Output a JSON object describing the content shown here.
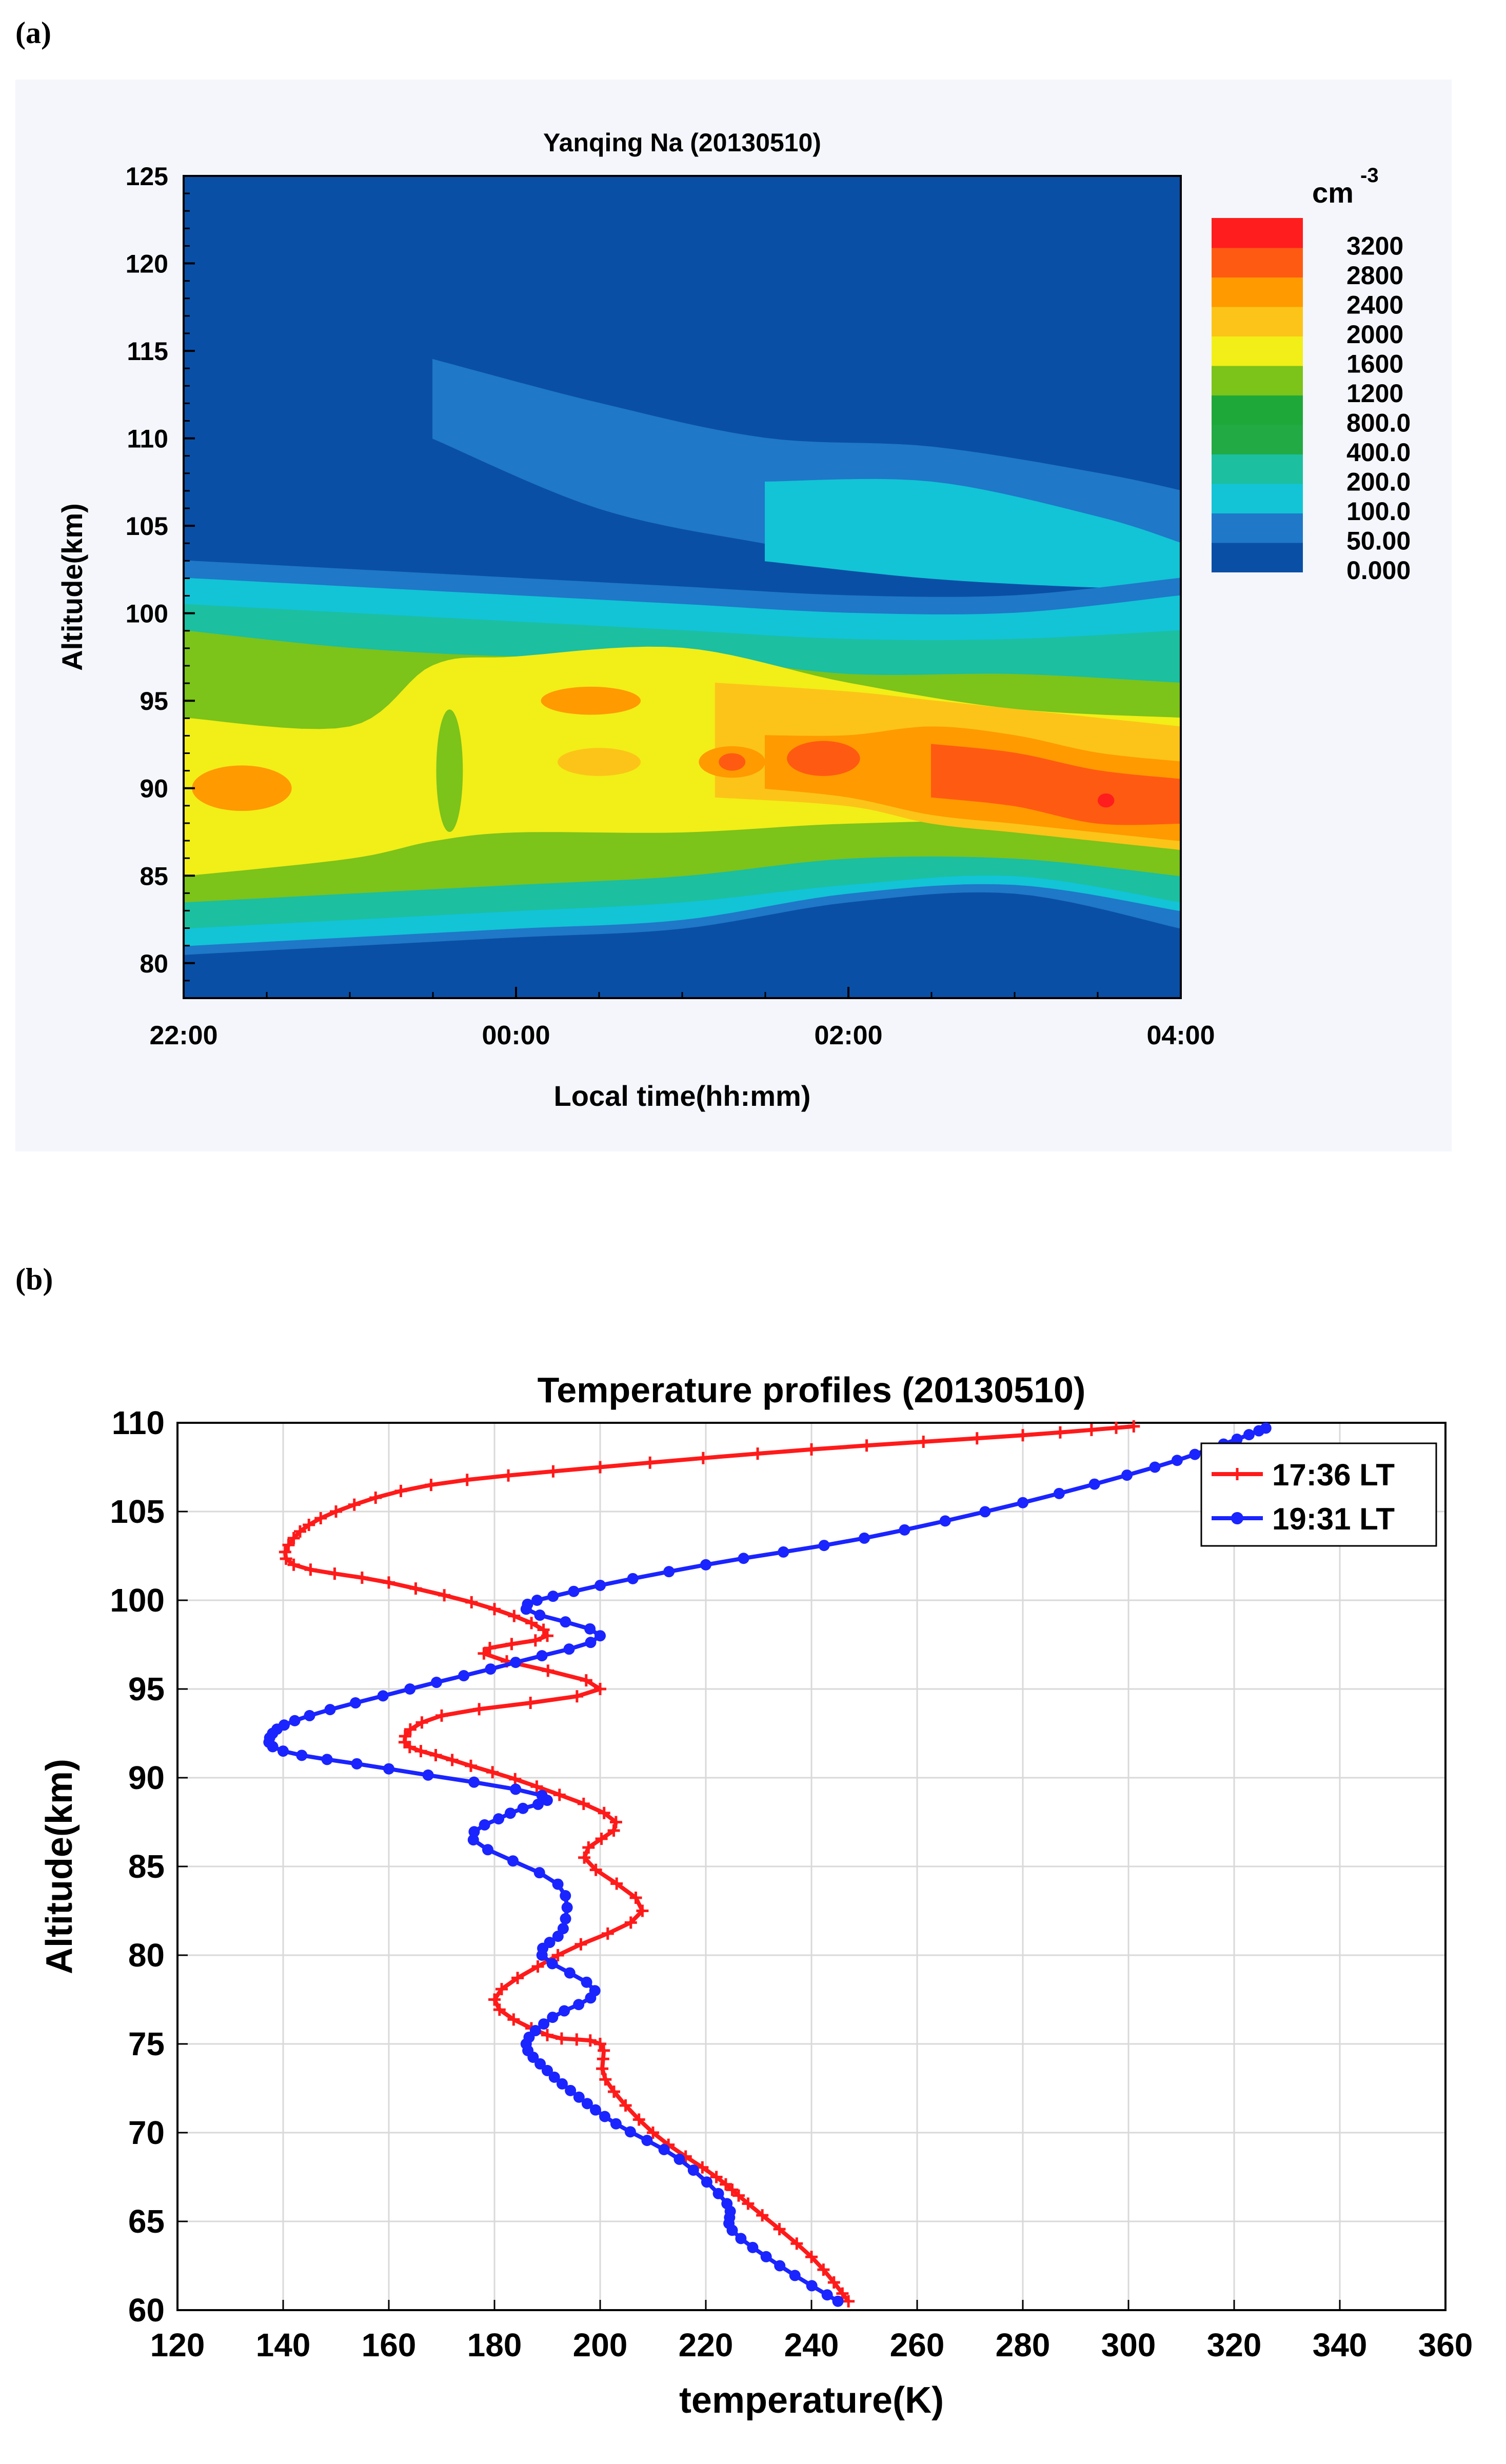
{
  "panels": {
    "a_label": "(a)",
    "b_label": "(b)"
  },
  "chart_data": [
    {
      "type": "heatmap",
      "title": "Yanqing Na (20130510)",
      "xlabel": "Local time(hh:mm)",
      "ylabel": "Altitude(km)",
      "x_tick_labels": [
        "22:00",
        "00:00",
        "02:00",
        "04:00"
      ],
      "x_range_hours": [
        0,
        6
      ],
      "ylim": [
        78,
        125
      ],
      "y_ticks": [
        80,
        85,
        90,
        95,
        100,
        105,
        110,
        115,
        120,
        125
      ],
      "colorbar": {
        "unit": "cm",
        "unit_exponent": "-3",
        "levels": [
          "0.000",
          "50.00",
          "100.0",
          "200.0",
          "400.0",
          "800.0",
          "1200",
          "1600",
          "2000",
          "2400",
          "2800",
          "3200"
        ],
        "colors": [
          "#0a4fa6",
          "#1f78c8",
          "#12c4d6",
          "#1cbfa0",
          "#22aa44",
          "#1fa83a",
          "#7cc31a",
          "#f2ee18",
          "#fcc418",
          "#ff9a00",
          "#ff5a12",
          "#ff1d1d"
        ]
      },
      "layers": [
        {
          "name": "base",
          "color": "#0a4fa6",
          "bottom": [
            [
              0,
              78
            ],
            [
              6,
              78
            ]
          ],
          "top": [
            [
              0,
              125
            ],
            [
              6,
              125
            ]
          ]
        },
        {
          "name": "upper_patch",
          "color": "#1f78c8",
          "bottom": [
            [
              1.5,
              110
            ],
            [
              2.5,
              106
            ],
            [
              3.5,
              104
            ],
            [
              4.5,
              102.5
            ],
            [
              5.5,
              102
            ],
            [
              6,
              101.5
            ]
          ],
          "top": [
            [
              1.5,
              114.5
            ],
            [
              2.5,
              112
            ],
            [
              3.5,
              110
            ],
            [
              4.5,
              109.5
            ],
            [
              5.5,
              108
            ],
            [
              6,
              107
            ]
          ]
        },
        {
          "name": "cyan_patch",
          "color": "#12c4d6",
          "bottom": [
            [
              3.5,
              103
            ],
            [
              4.5,
              102
            ],
            [
              5.5,
              101.5
            ],
            [
              6,
              101.5
            ]
          ],
          "top": [
            [
              3.5,
              107.5
            ],
            [
              4.5,
              107.5
            ],
            [
              5.5,
              105.5
            ],
            [
              6,
              104
            ]
          ]
        },
        {
          "name": "layer_50",
          "color": "#1f78c8",
          "bottom": [
            [
              0,
              80.5
            ],
            [
              1,
              81
            ],
            [
              2,
              81.5
            ],
            [
              3,
              82
            ],
            [
              4,
              83.5
            ],
            [
              5,
              84
            ],
            [
              6,
              82
            ]
          ],
          "top": [
            [
              0,
              103
            ],
            [
              1,
              102.5
            ],
            [
              2,
              102
            ],
            [
              3,
              101.5
            ],
            [
              4,
              101
            ],
            [
              5,
              101
            ],
            [
              6,
              102
            ]
          ]
        },
        {
          "name": "layer_100",
          "color": "#12c4d6",
          "bottom": [
            [
              0,
              81
            ],
            [
              1,
              81.5
            ],
            [
              2,
              82
            ],
            [
              3,
              82.5
            ],
            [
              4,
              84
            ],
            [
              5,
              84.5
            ],
            [
              6,
              83
            ]
          ],
          "top": [
            [
              0,
              102
            ],
            [
              1,
              101.5
            ],
            [
              2,
              101
            ],
            [
              3,
              100.5
            ],
            [
              4,
              100
            ],
            [
              5,
              100
            ],
            [
              6,
              101
            ]
          ]
        },
        {
          "name": "layer_400",
          "color": "#1cbfa0",
          "bottom": [
            [
              0,
              82
            ],
            [
              1,
              82.5
            ],
            [
              2,
              83
            ],
            [
              3,
              83.5
            ],
            [
              4,
              84.5
            ],
            [
              5,
              85
            ],
            [
              6,
              83.5
            ]
          ],
          "top": [
            [
              0,
              100.5
            ],
            [
              1,
              100
            ],
            [
              2,
              99.5
            ],
            [
              3,
              99
            ],
            [
              4,
              98.5
            ],
            [
              5,
              98.5
            ],
            [
              6,
              99
            ]
          ]
        },
        {
          "name": "layer_1200",
          "color": "#7cc31a",
          "bottom": [
            [
              0,
              83.5
            ],
            [
              1,
              84
            ],
            [
              2,
              84.5
            ],
            [
              3,
              85
            ],
            [
              4,
              86
            ],
            [
              5,
              86
            ],
            [
              6,
              85
            ]
          ],
          "top": [
            [
              0,
              99
            ],
            [
              1,
              98
            ],
            [
              2,
              97.5
            ],
            [
              3,
              97.5
            ],
            [
              4,
              96.5
            ],
            [
              5,
              96.5
            ],
            [
              6,
              96
            ]
          ]
        },
        {
          "name": "layer_1600",
          "color": "#f2ee18",
          "bottom": [
            [
              0,
              85
            ],
            [
              1,
              86
            ],
            [
              1.5,
              87
            ],
            [
              2,
              87.5
            ],
            [
              3,
              87.5
            ],
            [
              4,
              88
            ],
            [
              5,
              88
            ],
            [
              6,
              86.5
            ]
          ],
          "top": [
            [
              0,
              94
            ],
            [
              1,
              93.5
            ],
            [
              1.5,
              97
            ],
            [
              2,
              97.5
            ],
            [
              3,
              98
            ],
            [
              4,
              96
            ],
            [
              5,
              94.5
            ],
            [
              6,
              94
            ]
          ]
        },
        {
          "name": "layer_2000",
          "color": "#fcc418",
          "bottom": [
            [
              3.2,
              89.5
            ],
            [
              4,
              89
            ],
            [
              4.5,
              88
            ],
            [
              5,
              87.5
            ],
            [
              5.5,
              87
            ],
            [
              6,
              86.5
            ]
          ],
          "top": [
            [
              3.2,
              96
            ],
            [
              4,
              95.5
            ],
            [
              4.5,
              95
            ],
            [
              5,
              94.5
            ],
            [
              5.5,
              94
            ],
            [
              6,
              93.5
            ]
          ]
        },
        {
          "name": "layer_2400",
          "color": "#ff9a00",
          "bottom": [
            [
              3.5,
              90
            ],
            [
              4,
              89.5
            ],
            [
              4.5,
              88.5
            ],
            [
              5,
              88
            ],
            [
              5.5,
              87.5
            ],
            [
              6,
              87
            ]
          ],
          "top": [
            [
              3.5,
              93
            ],
            [
              4,
              93
            ],
            [
              4.5,
              93.5
            ],
            [
              5,
              93
            ],
            [
              5.5,
              92
            ],
            [
              6,
              91.5
            ]
          ]
        },
        {
          "name": "layer_2800",
          "color": "#ff5a12",
          "bottom": [
            [
              4.5,
              89.5
            ],
            [
              5,
              89
            ],
            [
              5.5,
              88
            ],
            [
              6,
              88
            ]
          ],
          "top": [
            [
              4.5,
              92.5
            ],
            [
              5,
              92
            ],
            [
              5.5,
              91
            ],
            [
              6,
              90.5
            ]
          ]
        }
      ],
      "spots": [
        {
          "x": 0.35,
          "y": 90,
          "rx": 0.3,
          "ry": 1.3,
          "color": "#ff9a00"
        },
        {
          "x": 2.45,
          "y": 95,
          "rx": 0.3,
          "ry": 0.8,
          "color": "#ff9a00"
        },
        {
          "x": 2.5,
          "y": 91.5,
          "rx": 0.25,
          "ry": 0.8,
          "color": "#fcc418"
        },
        {
          "x": 3.3,
          "y": 91.5,
          "rx": 0.2,
          "ry": 0.9,
          "color": "#ff9a00"
        },
        {
          "x": 3.3,
          "y": 91.5,
          "rx": 0.08,
          "ry": 0.5,
          "color": "#ff5a12"
        },
        {
          "x": 3.85,
          "y": 91.7,
          "rx": 0.22,
          "ry": 1.0,
          "color": "#ff5a12"
        },
        {
          "x": 5.55,
          "y": 89.3,
          "rx": 0.05,
          "ry": 0.4,
          "color": "#ff1d1d"
        },
        {
          "x": 0.9,
          "y": 95.5,
          "rx": 0.3,
          "ry": 0.9,
          "color": "#7cc31a"
        },
        {
          "x": 1.6,
          "y": 91,
          "rx": 0.08,
          "ry": 3.5,
          "color": "#7cc31a"
        }
      ]
    },
    {
      "type": "line",
      "title": "Temperature profiles (20130510)",
      "xlabel": "temperature(K)",
      "ylabel": "Altitude(km)",
      "xlim": [
        120,
        360
      ],
      "ylim": [
        60,
        110
      ],
      "x_ticks": [
        120,
        140,
        160,
        180,
        200,
        220,
        240,
        260,
        280,
        300,
        320,
        340,
        360
      ],
      "y_ticks": [
        60,
        65,
        70,
        75,
        80,
        85,
        90,
        95,
        100,
        105,
        110
      ],
      "grid": true,
      "legend_position": "top-right",
      "series": [
        {
          "name": "17:36 LT",
          "color": "#ff1a1a",
          "marker": "plus",
          "points": [
            [
              247,
              60.5
            ],
            [
              240,
              63
            ],
            [
              228,
              66
            ],
            [
              222,
              67.5
            ],
            [
              210,
              70
            ],
            [
              201,
              73
            ],
            [
              200,
              75
            ],
            [
              190,
              75.5
            ],
            [
              180,
              77.5
            ],
            [
              192,
              80
            ],
            [
              208,
              82.5
            ],
            [
              197,
              85.5
            ],
            [
              203,
              87.5
            ],
            [
              188,
              89.5
            ],
            [
              172,
              91
            ],
            [
              163,
              92
            ],
            [
              170,
              93.5
            ],
            [
              200,
              95
            ],
            [
              178,
              97
            ],
            [
              190,
              98
            ],
            [
              180,
              99.5
            ],
            [
              160,
              101
            ],
            [
              142,
              102
            ],
            [
              142,
              103.5
            ],
            [
              150,
              105
            ],
            [
              168,
              106.5
            ],
            [
              200,
              107.5
            ],
            [
              240,
              108.5
            ],
            [
              280,
              109.3
            ],
            [
              301,
              109.8
            ]
          ]
        },
        {
          "name": "19:31 LT",
          "color": "#1a24ff",
          "marker": "circle",
          "points": [
            [
              245,
              60.5
            ],
            [
              234,
              62.5
            ],
            [
              225,
              64.5
            ],
            [
              224,
              66
            ],
            [
              215,
              68.5
            ],
            [
              203,
              70.5
            ],
            [
              196,
              72
            ],
            [
              190,
              73.5
            ],
            [
              186,
              75
            ],
            [
              191,
              76.5
            ],
            [
              199,
              78
            ],
            [
              189,
              80
            ],
            [
              193,
              81.5
            ],
            [
              192,
              84
            ],
            [
              176,
              86.5
            ],
            [
              183,
              88
            ],
            [
              189,
              89
            ],
            [
              160,
              90.5
            ],
            [
              140,
              91.5
            ],
            [
              138,
              92.5
            ],
            [
              145,
              93.5
            ],
            [
              164,
              95
            ],
            [
              184,
              96.5
            ],
            [
              200,
              98
            ],
            [
              186,
              99.5
            ],
            [
              195,
              100.5
            ],
            [
              220,
              102
            ],
            [
              250,
              103.5
            ],
            [
              280,
              105.5
            ],
            [
              305,
              107.5
            ],
            [
              318,
              108.8
            ],
            [
              326,
              109.7
            ]
          ]
        }
      ]
    }
  ]
}
